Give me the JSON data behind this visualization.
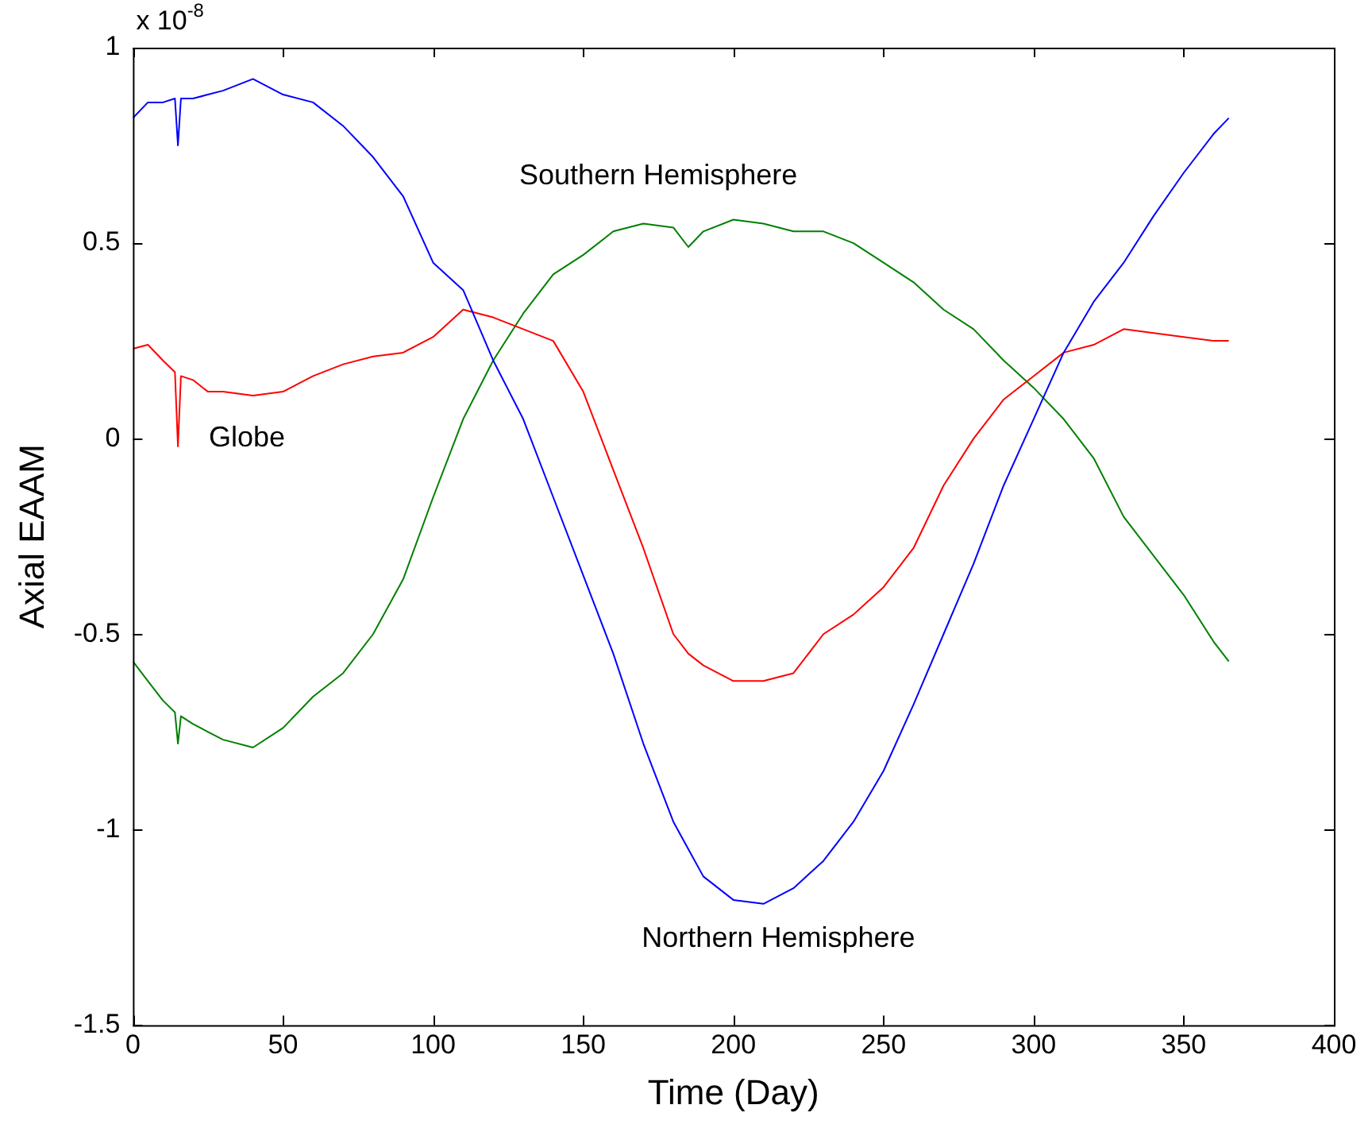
{
  "chart_data": {
    "type": "line",
    "xlabel": "Time (Day)",
    "ylabel": "Axial EAAM",
    "xlim": [
      0,
      400
    ],
    "xticks": [
      0,
      50,
      100,
      150,
      200,
      250,
      300,
      350,
      400
    ],
    "ylim": [
      -1.5,
      1
    ],
    "yticks": [
      -1.5,
      -1,
      -0.5,
      0,
      0.5,
      1
    ],
    "grid": false,
    "legend": false,
    "marker": "none",
    "line_style": "solid",
    "x": [
      0,
      5,
      10,
      14,
      15,
      16,
      20,
      25,
      30,
      40,
      50,
      60,
      70,
      80,
      90,
      100,
      110,
      120,
      130,
      140,
      150,
      160,
      170,
      180,
      185,
      190,
      200,
      210,
      220,
      230,
      240,
      250,
      260,
      270,
      280,
      290,
      300,
      310,
      320,
      330,
      340,
      350,
      360,
      365
    ],
    "series": [
      {
        "name": "Northern Hemisphere",
        "color": "#0000ff",
        "values": [
          0.82,
          0.86,
          0.86,
          0.87,
          0.75,
          0.87,
          0.87,
          0.88,
          0.89,
          0.92,
          0.88,
          0.86,
          0.8,
          0.72,
          0.62,
          0.45,
          0.38,
          0.2,
          0.05,
          -0.15,
          -0.35,
          -0.55,
          -0.78,
          -0.98,
          -1.05,
          -1.12,
          -1.18,
          -1.19,
          -1.15,
          -1.08,
          -0.98,
          -0.85,
          -0.68,
          -0.5,
          -0.32,
          -0.12,
          0.05,
          0.22,
          0.35,
          0.45,
          0.57,
          0.68,
          0.78,
          0.82
        ]
      },
      {
        "name": "Globe",
        "color": "#ff0000",
        "values": [
          0.23,
          0.24,
          0.2,
          0.17,
          -0.02,
          0.16,
          0.15,
          0.12,
          0.12,
          0.11,
          0.12,
          0.16,
          0.19,
          0.21,
          0.22,
          0.26,
          0.33,
          0.31,
          0.28,
          0.25,
          0.12,
          -0.08,
          -0.28,
          -0.5,
          -0.55,
          -0.58,
          -0.62,
          -0.62,
          -0.6,
          -0.5,
          -0.45,
          -0.38,
          -0.28,
          -0.12,
          0.0,
          0.1,
          0.16,
          0.22,
          0.24,
          0.28,
          0.27,
          0.26,
          0.25,
          0.25
        ]
      },
      {
        "name": "Southern Hemisphere",
        "color": "#008000",
        "values": [
          -0.57,
          -0.62,
          -0.67,
          -0.7,
          -0.78,
          -0.71,
          -0.73,
          -0.75,
          -0.77,
          -0.79,
          -0.74,
          -0.66,
          -0.6,
          -0.5,
          -0.36,
          -0.15,
          0.05,
          0.2,
          0.32,
          0.42,
          0.47,
          0.53,
          0.55,
          0.54,
          0.49,
          0.53,
          0.56,
          0.55,
          0.53,
          0.53,
          0.5,
          0.45,
          0.4,
          0.33,
          0.28,
          0.2,
          0.13,
          0.05,
          -0.05,
          -0.2,
          -0.3,
          -0.4,
          -0.52,
          -0.57
        ]
      }
    ],
    "annotations": [
      "x 10$^{-8}$"
    ]
  }
}
